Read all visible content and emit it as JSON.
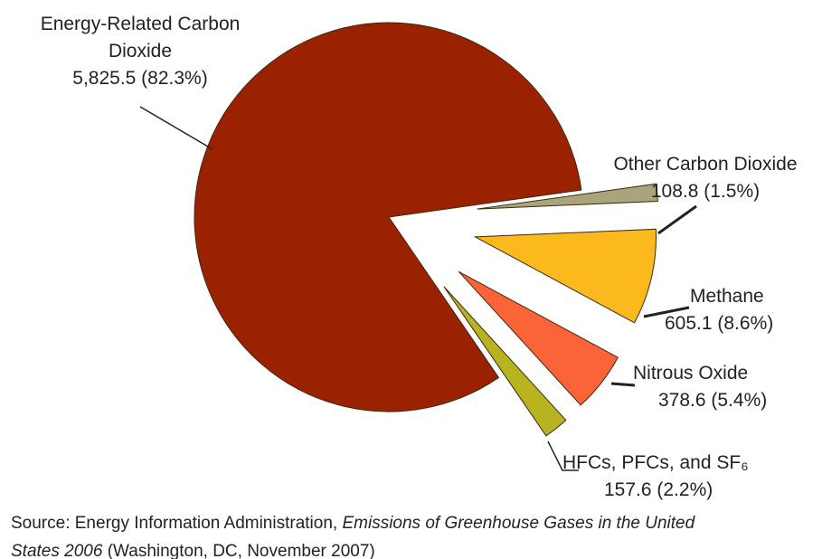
{
  "chart_data": {
    "type": "pie",
    "categories": [
      "Energy-Related Carbon Dioxide",
      "Other Carbon Dioxide",
      "Methane",
      "Nitrous Oxide",
      "HFCs, PFCs, and SF₆"
    ],
    "values": [
      5825.5,
      108.8,
      605.1,
      378.6,
      157.6
    ],
    "value_labels": [
      "5,825.5 (82.3%)",
      "108.8 (1.5%)",
      "605.1 (8.6%)",
      "378.6 (5.4%)",
      "157.6 (2.2%)"
    ],
    "colors": [
      "#9a2200",
      "#a9a47a",
      "#fbb91e",
      "#fb6436",
      "#b8b421"
    ],
    "source": {
      "prefix": "Source: Energy Information Administration, ",
      "title": "Emissions of Greenhouse Gases in the United States 2006",
      "suffix": " (Washington, DC, November 2007)"
    }
  }
}
